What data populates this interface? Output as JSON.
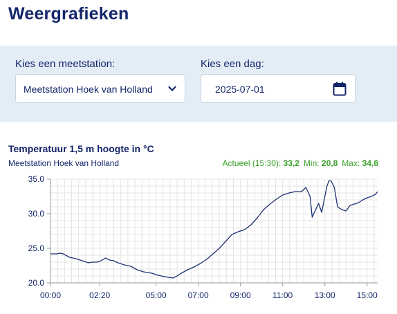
{
  "page": {
    "title": "Weergrafieken"
  },
  "filters": {
    "station_label": "Kies een meetstation:",
    "station_value": "Meetstation Hoek van Holland",
    "day_label": "Kies een dag:",
    "day_value": "2025-07-01",
    "select_icon": "chevron-down-icon",
    "date_icon": "calendar-icon"
  },
  "chart": {
    "title": "Temperatuur 1,5 m hoogte in °C",
    "station": "Meetstation Hoek van Holland",
    "actual_label": "Actueel (15:30):",
    "actual_value": "33,2",
    "min_label": "Min:",
    "min_value": "20,8",
    "max_label": "Max:",
    "max_value": "34,8"
  },
  "colors": {
    "title": "#13256a",
    "panel": "#e3edf6",
    "line": "#1d2f73",
    "stats": "#3aa12a"
  },
  "chart_data": {
    "type": "line",
    "title": "Temperatuur 1,5 m hoogte in °C",
    "xlabel": "",
    "ylabel": "",
    "xlim": [
      0,
      15.5
    ],
    "ylim": [
      20,
      35
    ],
    "x_ticks": [
      0,
      2.333,
      5,
      7,
      9,
      11,
      13,
      15
    ],
    "x_tick_labels": [
      "00:00",
      "02:20",
      "05:00",
      "07:00",
      "09:00",
      "11:00",
      "13:00",
      "15:00"
    ],
    "y_ticks": [
      20,
      25,
      30,
      35
    ],
    "y_tick_labels": [
      "20.0",
      "25.0",
      "30.0",
      "35.0"
    ],
    "grid": true,
    "series": [
      {
        "x": [
          0,
          0.3,
          0.45,
          0.6,
          0.9,
          1.2,
          1.5,
          1.8,
          2.0,
          2.2,
          2.4,
          2.6,
          2.8,
          3.0,
          3.2,
          3.5,
          3.8,
          4.1,
          4.4,
          4.8,
          5.1,
          5.4,
          5.6,
          5.8,
          6.0,
          6.2,
          6.5,
          6.8,
          7.1,
          7.4,
          7.7,
          8.0,
          8.3,
          8.6,
          8.9,
          9.2,
          9.5,
          9.8,
          10.1,
          10.4,
          10.7,
          11.0,
          11.3,
          11.6,
          11.9,
          12.1,
          12.3,
          12.4,
          12.55,
          12.7,
          12.85,
          13.0,
          13.1,
          13.2,
          13.3,
          13.45,
          13.6,
          13.8,
          14.0,
          14.2,
          14.4,
          14.6,
          14.8,
          15.0,
          15.2,
          15.4,
          15.5
        ],
        "y": [
          24.2,
          24.2,
          24.3,
          24.2,
          23.7,
          23.5,
          23.2,
          22.9,
          23.0,
          23.0,
          23.2,
          23.6,
          23.3,
          23.2,
          22.9,
          22.6,
          22.4,
          21.9,
          21.6,
          21.4,
          21.1,
          20.9,
          20.8,
          20.7,
          21.0,
          21.4,
          21.9,
          22.3,
          22.8,
          23.4,
          24.2,
          25.0,
          26.0,
          27.0,
          27.4,
          27.7,
          28.4,
          29.4,
          30.6,
          31.4,
          32.1,
          32.7,
          33.0,
          33.2,
          33.2,
          33.8,
          32.5,
          29.5,
          30.5,
          31.5,
          30.2,
          32.5,
          34.0,
          34.8,
          34.7,
          33.8,
          31.0,
          30.6,
          30.4,
          31.2,
          31.4,
          31.6,
          32.0,
          32.3,
          32.5,
          32.8,
          33.2
        ]
      }
    ]
  }
}
